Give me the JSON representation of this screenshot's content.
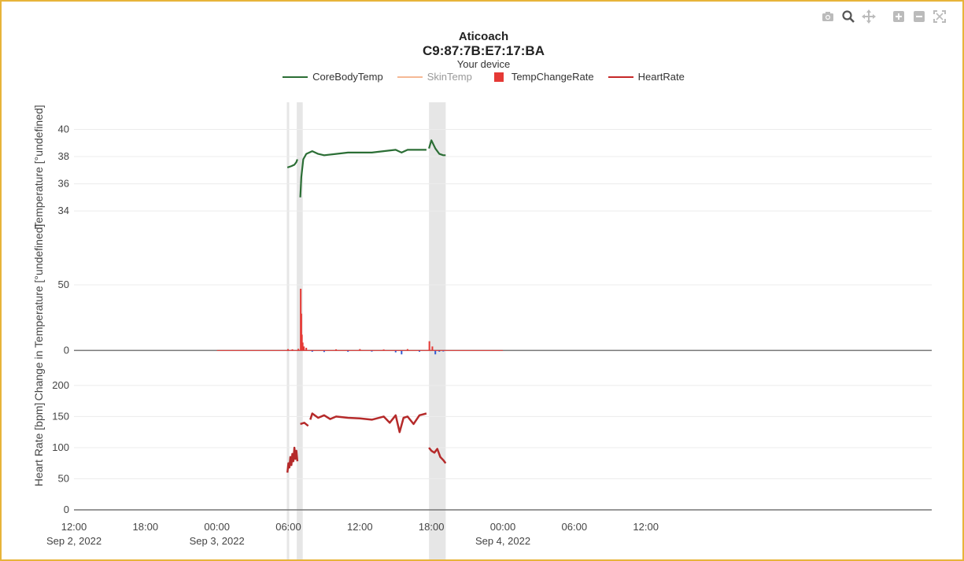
{
  "title": {
    "line1": "Aticoach",
    "line2": "C9:87:7B:E7:17:BA",
    "line3": "Your device"
  },
  "modebar": [
    {
      "icon": "camera-icon"
    },
    {
      "icon": "zoom-icon"
    },
    {
      "icon": "pan-icon"
    },
    {
      "icon": "zoom-in-icon"
    },
    {
      "icon": "zoom-out-icon"
    },
    {
      "icon": "autoscale-icon"
    }
  ],
  "legend": [
    {
      "label": "CoreBodyTemp",
      "color": "#2b6e35",
      "kind": "line",
      "dimmed": false
    },
    {
      "label": "SkinTemp",
      "color": "#f5b995",
      "kind": "line",
      "dimmed": true
    },
    {
      "label": "TempChangeRate",
      "color": "#e53935",
      "kind": "box",
      "dimmed": false
    },
    {
      "label": "HeartRate",
      "color": "#c62828",
      "kind": "line",
      "dimmed": false
    }
  ],
  "colors": {
    "core_temp": "#2b6e35",
    "rate_positive": "#e53935",
    "rate_negative": "#2f5bd3",
    "heart_rate": "#b52a2a",
    "shade": "#e6e6e6",
    "grid": "#ececec",
    "axis": "#666666"
  },
  "chart_data": {
    "type": "line",
    "x_axis": {
      "range": [
        "2022-09-02 12:00",
        "2022-09-05 12:00"
      ],
      "ticks": [
        {
          "t": "2022-09-02 12:00",
          "label": "12:00",
          "sub": "Sep 2, 2022"
        },
        {
          "t": "2022-09-02 18:00",
          "label": "18:00",
          "sub": ""
        },
        {
          "t": "2022-09-03 00:00",
          "label": "00:00",
          "sub": "Sep 3, 2022"
        },
        {
          "t": "2022-09-03 06:00",
          "label": "06:00",
          "sub": ""
        },
        {
          "t": "2022-09-03 12:00",
          "label": "12:00",
          "sub": ""
        },
        {
          "t": "2022-09-03 18:00",
          "label": "18:00",
          "sub": ""
        },
        {
          "t": "2022-09-04 00:00",
          "label": "00:00",
          "sub": "Sep 4, 2022"
        },
        {
          "t": "2022-09-04 06:00",
          "label": "06:00",
          "sub": ""
        },
        {
          "t": "2022-09-04 12:00",
          "label": "12:00",
          "sub": ""
        }
      ]
    },
    "shaded_regions": [
      [
        "2022-09-03 05:52",
        "2022-09-03 06:00"
      ],
      [
        "2022-09-03 06:42",
        "2022-09-03 07:12"
      ],
      [
        "2022-09-03 17:48",
        "2022-09-03 19:12"
      ]
    ],
    "panels": [
      {
        "name": "temperature",
        "ylabel": "Temperature [°undefined]",
        "yrange": [
          32.5,
          42
        ],
        "yticks": [
          34,
          36,
          38,
          40
        ],
        "series": [
          {
            "name": "CoreBodyTemp",
            "segments": [
              [
                [
                  "2022-09-03 05:55",
                  37.2
                ],
                [
                  "2022-09-03 06:15",
                  37.3
                ],
                [
                  "2022-09-03 06:30",
                  37.4
                ],
                [
                  "2022-09-03 06:40",
                  37.6
                ],
                [
                  "2022-09-03 06:45",
                  37.8
                ]
              ],
              [
                [
                  "2022-09-03 07:00",
                  35.0
                ],
                [
                  "2022-09-03 07:05",
                  36.5
                ],
                [
                  "2022-09-03 07:15",
                  37.8
                ],
                [
                  "2022-09-03 07:30",
                  38.2
                ],
                [
                  "2022-09-03 08:00",
                  38.4
                ],
                [
                  "2022-09-03 08:30",
                  38.2
                ],
                [
                  "2022-09-03 09:00",
                  38.1
                ],
                [
                  "2022-09-03 10:00",
                  38.2
                ],
                [
                  "2022-09-03 11:00",
                  38.3
                ],
                [
                  "2022-09-03 12:00",
                  38.3
                ],
                [
                  "2022-09-03 13:00",
                  38.3
                ],
                [
                  "2022-09-03 14:00",
                  38.4
                ],
                [
                  "2022-09-03 15:00",
                  38.5
                ],
                [
                  "2022-09-03 15:30",
                  38.3
                ],
                [
                  "2022-09-03 16:00",
                  38.5
                ],
                [
                  "2022-09-03 17:00",
                  38.5
                ],
                [
                  "2022-09-03 17:35",
                  38.5
                ]
              ],
              [
                [
                  "2022-09-03 17:48",
                  38.6
                ],
                [
                  "2022-09-03 18:00",
                  39.2
                ],
                [
                  "2022-09-03 18:20",
                  38.6
                ],
                [
                  "2022-09-03 18:40",
                  38.2
                ],
                [
                  "2022-09-03 19:00",
                  38.1
                ],
                [
                  "2022-09-03 19:12",
                  38.1
                ]
              ]
            ]
          }
        ]
      },
      {
        "name": "change",
        "ylabel": "Change in Temperature [°undefined]",
        "yrange": [
          -10,
          68
        ],
        "yticks": [
          0,
          50
        ],
        "series": [
          {
            "name": "TempChangeRate",
            "spikes": [
              [
                "2022-09-03 05:58",
                1.0
              ],
              [
                "2022-09-03 06:20",
                0.8
              ],
              [
                "2022-09-03 06:50",
                1.2
              ],
              [
                "2022-09-03 07:02",
                47.0
              ],
              [
                "2022-09-03 07:05",
                28.0
              ],
              [
                "2022-09-03 07:08",
                12.0
              ],
              [
                "2022-09-03 07:12",
                6.0
              ],
              [
                "2022-09-03 07:18",
                3.0
              ],
              [
                "2022-09-03 07:30",
                2.0
              ],
              [
                "2022-09-03 08:00",
                -1.0
              ],
              [
                "2022-09-03 09:00",
                -1.2
              ],
              [
                "2022-09-03 10:00",
                0.8
              ],
              [
                "2022-09-03 11:00",
                -1.0
              ],
              [
                "2022-09-03 12:00",
                1.0
              ],
              [
                "2022-09-03 13:00",
                -0.9
              ],
              [
                "2022-09-03 14:00",
                0.7
              ],
              [
                "2022-09-03 15:00",
                -1.5
              ],
              [
                "2022-09-03 15:30",
                -3.0
              ],
              [
                "2022-09-03 16:00",
                1.0
              ],
              [
                "2022-09-03 17:00",
                -1.0
              ],
              [
                "2022-09-03 17:50",
                7.0
              ],
              [
                "2022-09-03 18:05",
                3.0
              ],
              [
                "2022-09-03 18:20",
                -3.0
              ],
              [
                "2022-09-03 18:40",
                -1.0
              ],
              [
                "2022-09-03 19:00",
                -0.8
              ]
            ]
          }
        ]
      },
      {
        "name": "heart_rate",
        "ylabel": "Heart Rate [bpm]",
        "yrange": [
          0,
          210
        ],
        "yticks": [
          0,
          50,
          100,
          150,
          200
        ],
        "series": [
          {
            "name": "HeartRate",
            "segments": [
              [
                [
                  "2022-09-03 05:55",
                  60
                ],
                [
                  "2022-09-03 06:00",
                  75
                ],
                [
                  "2022-09-03 06:05",
                  68
                ],
                [
                  "2022-09-03 06:10",
                  85
                ],
                [
                  "2022-09-03 06:15",
                  72
                ],
                [
                  "2022-09-03 06:20",
                  90
                ],
                [
                  "2022-09-03 06:25",
                  78
                ],
                [
                  "2022-09-03 06:30",
                  100
                ],
                [
                  "2022-09-03 06:35",
                  82
                ],
                [
                  "2022-09-03 06:40",
                  95
                ],
                [
                  "2022-09-03 06:45",
                  78
                ]
              ],
              [
                [
                  "2022-09-03 07:00",
                  138
                ],
                [
                  "2022-09-03 07:20",
                  140
                ],
                [
                  "2022-09-03 07:40",
                  135
                ]
              ],
              [
                [
                  "2022-09-03 07:50",
                  145
                ],
                [
                  "2022-09-03 08:00",
                  155
                ],
                [
                  "2022-09-03 08:30",
                  148
                ],
                [
                  "2022-09-03 09:00",
                  152
                ],
                [
                  "2022-09-03 09:30",
                  146
                ],
                [
                  "2022-09-03 10:00",
                  150
                ],
                [
                  "2022-09-03 11:00",
                  148
                ],
                [
                  "2022-09-03 12:00",
                  147
                ],
                [
                  "2022-09-03 13:00",
                  145
                ],
                [
                  "2022-09-03 14:00",
                  150
                ],
                [
                  "2022-09-03 14:30",
                  140
                ],
                [
                  "2022-09-03 15:00",
                  152
                ],
                [
                  "2022-09-03 15:20",
                  125
                ],
                [
                  "2022-09-03 15:40",
                  148
                ],
                [
                  "2022-09-03 16:00",
                  150
                ],
                [
                  "2022-09-03 16:30",
                  138
                ],
                [
                  "2022-09-03 17:00",
                  152
                ],
                [
                  "2022-09-03 17:35",
                  155
                ]
              ],
              [
                [
                  "2022-09-03 17:48",
                  100
                ],
                [
                  "2022-09-03 18:00",
                  95
                ],
                [
                  "2022-09-03 18:15",
                  92
                ],
                [
                  "2022-09-03 18:30",
                  98
                ],
                [
                  "2022-09-03 18:45",
                  85
                ],
                [
                  "2022-09-03 19:00",
                  80
                ],
                [
                  "2022-09-03 19:12",
                  75
                ]
              ]
            ]
          }
        ]
      }
    ]
  }
}
